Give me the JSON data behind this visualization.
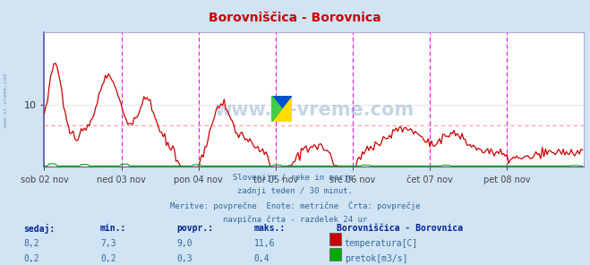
{
  "title": "Borovniščica - Borovnica",
  "title_color": "#cc0000",
  "bg_color": "#d0e4f4",
  "plot_bg_color": "#ffffff",
  "grid_color": "#dddddd",
  "watermark": "www.si-vreme.com",
  "footer_lines": [
    "Slovenija / reke in morje.",
    "zadnji teden / 30 minut.",
    "Meritve: povprečne  Enote: metrične  Črta: povprečje",
    "navpična črta - razdelek 24 ur"
  ],
  "temp_color": "#cc0000",
  "flow_color": "#00aa00",
  "avg_line_color": "#ff9999",
  "vline_color": "#ff00ff",
  "avg_temp": 9.0,
  "ylim": [
    7.0,
    13.5
  ],
  "ytick_val": 10,
  "num_points": 336,
  "x_ticks_pos": [
    0,
    48,
    96,
    144,
    192,
    240,
    288
  ],
  "x_labels": [
    "sob 02 nov",
    "ned 03 nov",
    "pon 04 nov",
    "tor 05 nov",
    "sre 06 nov",
    "čet 07 nov",
    "pet 08 nov"
  ],
  "sidebar_text": "www.si-vreme.com",
  "stats_header": [
    "sedaj:",
    "min.:",
    "povpr.:",
    "maks.:"
  ],
  "stats_temp": [
    "8,2",
    "7,3",
    "9,0",
    "11,6"
  ],
  "stats_flow": [
    "0,2",
    "0,2",
    "0,3",
    "0,4"
  ],
  "legend_title": "Borovniščica - Borovnica",
  "legend_items": [
    "temperatura[C]",
    "pretok[m3/s]"
  ],
  "legend_colors": [
    "#cc0000",
    "#00aa00"
  ],
  "flow_spikes_x": [
    5,
    25,
    50,
    95,
    145,
    200,
    250,
    330
  ],
  "flow_spike_h": [
    0.25,
    0.18,
    0.22,
    0.15,
    0.12,
    0.1,
    0.08,
    0.05
  ]
}
